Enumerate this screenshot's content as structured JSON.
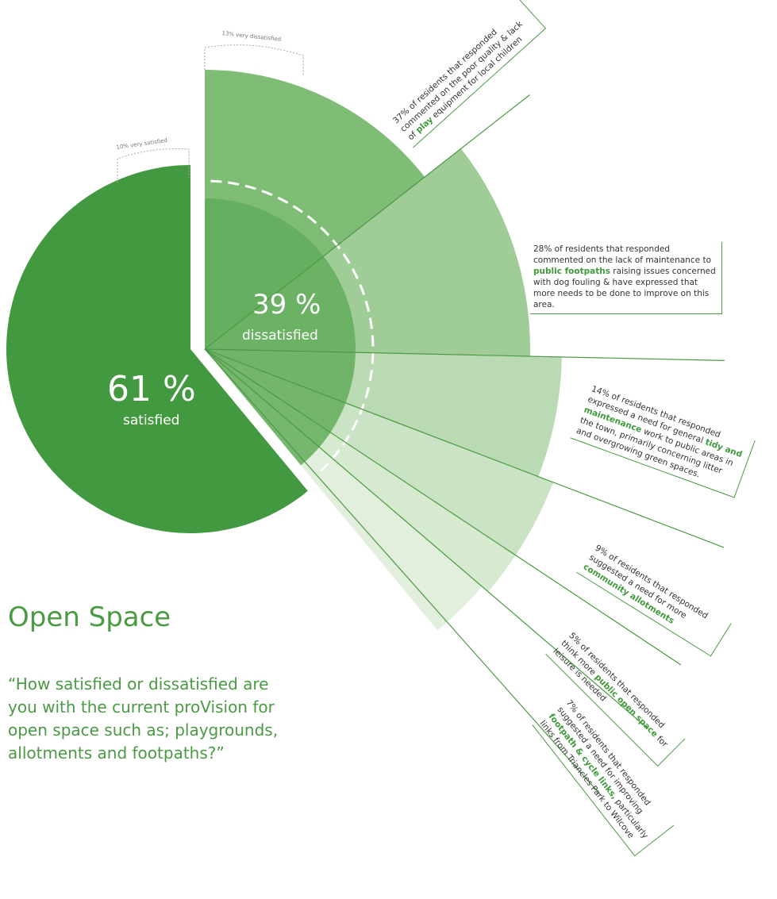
{
  "chart_data": {
    "type": "pie",
    "categories": [
      "satisfied",
      "dissatisfied"
    ],
    "values": [
      61,
      39
    ],
    "value_labels": [
      "61 %",
      "39 %"
    ],
    "colors": [
      "#43993f",
      "#63ad5c"
    ],
    "annotations": [
      "10% very satisfied",
      "13% very dissatisfied"
    ],
    "breakdown": {
      "values": [
        37,
        28,
        14,
        9,
        5,
        7
      ],
      "colors": [
        "#7fbd77",
        "#a0cc98",
        "#b9dab2",
        "#cae3c4",
        "#d6eacf",
        "#e1efdc"
      ],
      "notes": [
        {
          "pre": "37% of residents that responded commented on the poor quality & lack of ",
          "highlight": "play",
          "post": " equipment for local children"
        },
        {
          "pre": "28% of residents that responded commented on the lack of maintenance to ",
          "highlight": "public footpaths",
          "post": " raising issues concerned with dog fouling & have expressed that more needs to be done to improve on this area."
        },
        {
          "pre": "14% of residents that responded expressed a need for general ",
          "highlight": "tidy and maintenance",
          "post": " work to public areas in the town, primarily concerning litter and overgrowing green spaces."
        },
        {
          "pre": "9% of residents that responded suggested a need for more ",
          "highlight": "community allotments"
        },
        {
          "pre": "5% of residents that responded think more ",
          "highlight": "public open space",
          "post": " for leisure is needed"
        },
        {
          "pre": "7% of residents that responded suggested a need for improving ",
          "highlight": "footpath & cycle links,",
          "post": " particularly links from Triancles Park to Wilcove"
        }
      ]
    }
  },
  "title": "Open Space",
  "question": "“How satisfied or dissatisfied are you with the current proVision for open space such as; playgrounds, allotments and footpaths?”"
}
